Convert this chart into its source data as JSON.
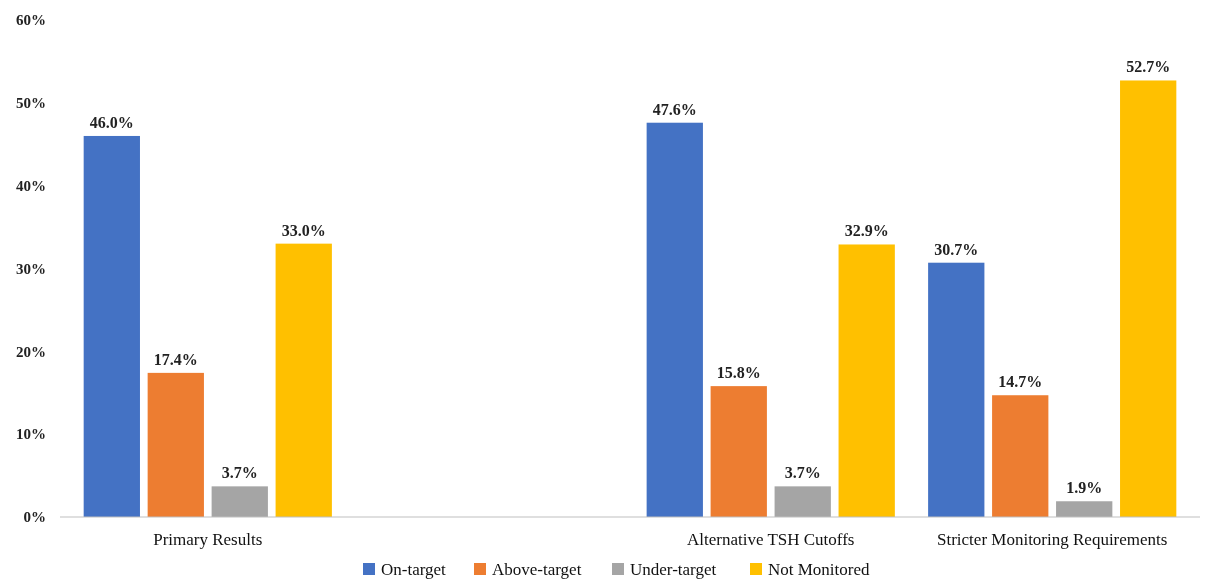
{
  "chart_data": {
    "type": "bar",
    "categories": [
      "Primary Results",
      null,
      "Alternative TSH Cutoffs",
      "Stricter Monitoring Requirements"
    ],
    "series": [
      {
        "name": "On-target",
        "color": "#4472c4",
        "values": [
          46.0,
          null,
          47.6,
          30.7
        ],
        "value_labels": [
          "46.0%",
          null,
          "47.6%",
          "30.7%"
        ]
      },
      {
        "name": "Above-target",
        "color": "#ed7d31",
        "values": [
          17.4,
          null,
          15.8,
          14.7
        ],
        "value_labels": [
          "17.4%",
          null,
          "15.8%",
          "14.7%"
        ]
      },
      {
        "name": "Under-target",
        "color": "#a5a5a5",
        "values": [
          3.7,
          null,
          3.7,
          1.9
        ],
        "value_labels": [
          "3.7%",
          null,
          "3.7%",
          "1.9%"
        ]
      },
      {
        "name": "Not Monitored",
        "color": "#ffc000",
        "values": [
          33.0,
          null,
          32.9,
          52.7
        ],
        "value_labels": [
          "33.0%",
          null,
          "32.9%",
          "52.7%"
        ]
      }
    ],
    "ylim": [
      0,
      60
    ],
    "yticks": [
      {
        "value": 0,
        "label": "0%"
      },
      {
        "value": 10,
        "label": "10%"
      },
      {
        "value": 20,
        "label": "20%"
      },
      {
        "value": 30,
        "label": "30%"
      },
      {
        "value": 40,
        "label": "40%"
      },
      {
        "value": 50,
        "label": "50%"
      },
      {
        "value": 60,
        "label": "60%"
      }
    ],
    "grid": false,
    "legend": "bottom"
  }
}
